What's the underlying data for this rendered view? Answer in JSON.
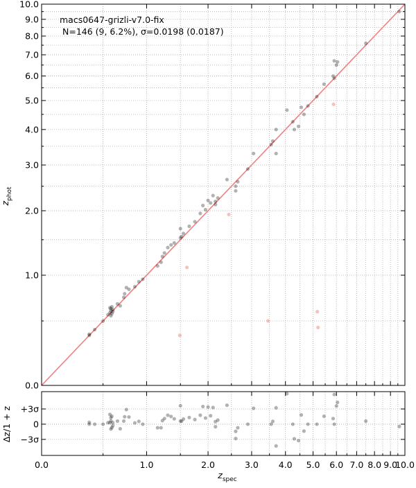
{
  "chart_data": {
    "type": "scatter",
    "scale": "log1p",
    "grid": true,
    "annotations": [
      "macs0647-grizli-v7.0-fix",
      "N=146 (9,  6.2%), σ=0.0198 (0.0187)"
    ],
    "xlabel": "z",
    "xlabel_sub": "spec",
    "ylabel": "z",
    "ylabel_sub": "phot",
    "residual_ylabel": "Δz/1 + z",
    "xlim": [
      0,
      10
    ],
    "ylim": [
      0,
      10
    ],
    "xticks": [
      {
        "value": 0,
        "label": "0.0"
      },
      {
        "value": 1,
        "label": "1.0"
      },
      {
        "value": 2,
        "label": "2.0"
      },
      {
        "value": 3,
        "label": "3.0"
      },
      {
        "value": 4,
        "label": "4.0"
      },
      {
        "value": 5,
        "label": "5.0"
      },
      {
        "value": 6,
        "label": "6.0"
      },
      {
        "value": 7,
        "label": "7.0"
      },
      {
        "value": 8,
        "label": "8.0"
      },
      {
        "value": 9,
        "label": "9.0"
      },
      {
        "value": 10,
        "label": "10.0"
      }
    ],
    "yticks": [
      {
        "value": 0,
        "label": "0.0"
      },
      {
        "value": 1,
        "label": "1.0"
      },
      {
        "value": 2,
        "label": "2.0"
      },
      {
        "value": 3,
        "label": "3.0"
      },
      {
        "value": 4,
        "label": "4.0"
      },
      {
        "value": 5,
        "label": "5.0"
      },
      {
        "value": 6,
        "label": "6.0"
      },
      {
        "value": 7,
        "label": "7.0"
      },
      {
        "value": 8,
        "label": "8.0"
      },
      {
        "value": 9,
        "label": "9.0"
      },
      {
        "value": 10,
        "label": "10.0"
      }
    ],
    "minorticks": [
      0.5,
      1.5,
      2.5,
      3.5,
      4.5,
      5.5,
      6.5,
      7.5,
      8.5,
      9.5
    ],
    "residual_ylim": [
      -0.122,
      0.127
    ],
    "residual_yticks": [
      {
        "value": 0.0594,
        "label": "+3σ"
      },
      0,
      {
        "value": -0.0594,
        "label": "−3σ"
      }
    ],
    "series": [
      {
        "color": "#000000",
        "x": [
          0.37,
          0.37,
          0.42,
          0.5,
          0.55,
          0.57,
          0.58,
          0.58,
          0.59,
          0.6,
          0.58,
          0.57,
          0.59,
          0.6,
          0.65,
          0.68,
          0.72,
          0.73,
          0.75,
          0.78,
          0.85,
          0.9,
          0.95,
          1.15,
          1.2,
          1.22,
          1.25,
          1.3,
          1.35,
          1.4,
          1.5,
          1.5,
          1.52,
          1.55,
          1.65,
          1.75,
          1.85,
          1.9,
          1.95,
          2.0,
          2.05,
          2.1,
          2.15,
          2.15,
          2.2,
          2.4,
          2.6,
          2.6,
          2.65,
          2.9,
          3.05,
          3.55,
          3.6,
          3.7,
          3.7,
          4.05,
          4.25,
          4.3,
          4.45,
          4.55,
          4.65,
          4.8,
          5.15,
          5.45,
          5.9,
          5.85,
          5.9,
          6.0,
          6.05,
          7.5,
          9.6
        ],
        "values": [
          0.37,
          0.38,
          0.42,
          0.5,
          0.56,
          0.58,
          0.6,
          0.62,
          0.57,
          0.61,
          0.55,
          0.63,
          0.64,
          0.59,
          0.67,
          0.65,
          0.74,
          0.78,
          0.85,
          0.83,
          0.86,
          0.92,
          0.95,
          1.12,
          1.17,
          1.25,
          1.3,
          1.38,
          1.42,
          1.45,
          1.53,
          1.68,
          1.55,
          1.6,
          1.72,
          1.8,
          1.95,
          2.1,
          2.02,
          2.2,
          2.15,
          2.3,
          2.18,
          2.12,
          2.25,
          2.65,
          2.4,
          2.5,
          2.6,
          2.9,
          3.3,
          3.55,
          3.65,
          4.0,
          3.3,
          4.65,
          4.25,
          4.0,
          4.1,
          4.75,
          4.5,
          4.8,
          5.15,
          5.65,
          6.7,
          6.0,
          5.9,
          6.5,
          6.65,
          7.6,
          9.5
        ],
        "residuals": [
          0,
          0.007,
          0,
          0,
          0.006,
          0.006,
          0.013,
          0.025,
          -0.013,
          0.006,
          -0.019,
          0.038,
          0.031,
          -0.006,
          0.012,
          -0.018,
          0.012,
          0.029,
          0.057,
          0.028,
          0.005,
          0.011,
          0,
          -0.014,
          -0.014,
          0.014,
          0.022,
          0.035,
          0.03,
          0.021,
          0.012,
          0.072,
          0.012,
          0.02,
          0.026,
          0.018,
          0.035,
          0.069,
          0.024,
          0.067,
          0.033,
          0.065,
          0.01,
          -0.01,
          0.016,
          0.074,
          -0.056,
          -0.028,
          -0.014,
          0,
          0.062,
          0,
          0.011,
          0.064,
          -0.085,
          0.119,
          0,
          -0.057,
          -0.064,
          0.036,
          -0.027,
          0,
          0,
          0.031,
          0.116,
          0.022,
          0,
          0.071,
          0.085,
          0.012,
          -0.009
        ]
      },
      {
        "color": "#e8776f",
        "x": [
          1.49,
          1.61,
          2.44,
          3.46,
          5.17,
          5.2,
          5.87
        ],
        "values": [
          0.37,
          1.1,
          1.93,
          0.5,
          0.59,
          0.44,
          4.86
        ]
      }
    ]
  }
}
